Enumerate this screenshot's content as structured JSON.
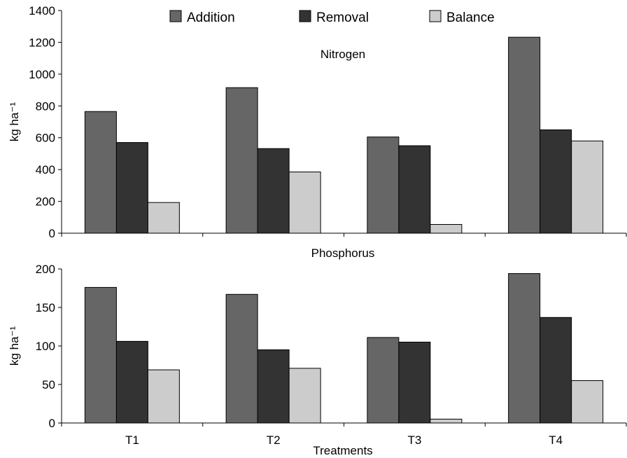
{
  "chart_data": {
    "type": "bar",
    "xlabel": "Treatments",
    "categories": [
      "T1",
      "T2",
      "T3",
      "T4"
    ],
    "legend": {
      "placement": "top",
      "entries": [
        {
          "name": "Addition",
          "color": "#666666"
        },
        {
          "name": "Removal",
          "color": "#333333"
        },
        {
          "name": "Balance",
          "color": "#cccccc"
        }
      ]
    },
    "panels": [
      {
        "title": "Nitrogen",
        "ylabel": "kg ha⁻¹",
        "ylim": [
          0,
          1400
        ],
        "yticks": [
          0,
          200,
          400,
          600,
          800,
          1000,
          1200,
          1400
        ],
        "series": [
          {
            "name": "Addition",
            "values": [
              765,
              915,
              605,
              1232
            ]
          },
          {
            "name": "Removal",
            "values": [
              570,
              532,
              550,
              650
            ]
          },
          {
            "name": "Balance",
            "values": [
              193,
              385,
              55,
              580
            ]
          }
        ]
      },
      {
        "title": "Phosphorus",
        "ylabel": "kg ha⁻¹",
        "ylim": [
          0,
          200
        ],
        "yticks": [
          0,
          50,
          100,
          150,
          200
        ],
        "series": [
          {
            "name": "Addition",
            "values": [
              176,
              167,
              111,
              194
            ]
          },
          {
            "name": "Removal",
            "values": [
              106,
              95,
              105,
              137
            ]
          },
          {
            "name": "Balance",
            "values": [
              69,
              71,
              5,
              55
            ]
          }
        ]
      }
    ]
  }
}
